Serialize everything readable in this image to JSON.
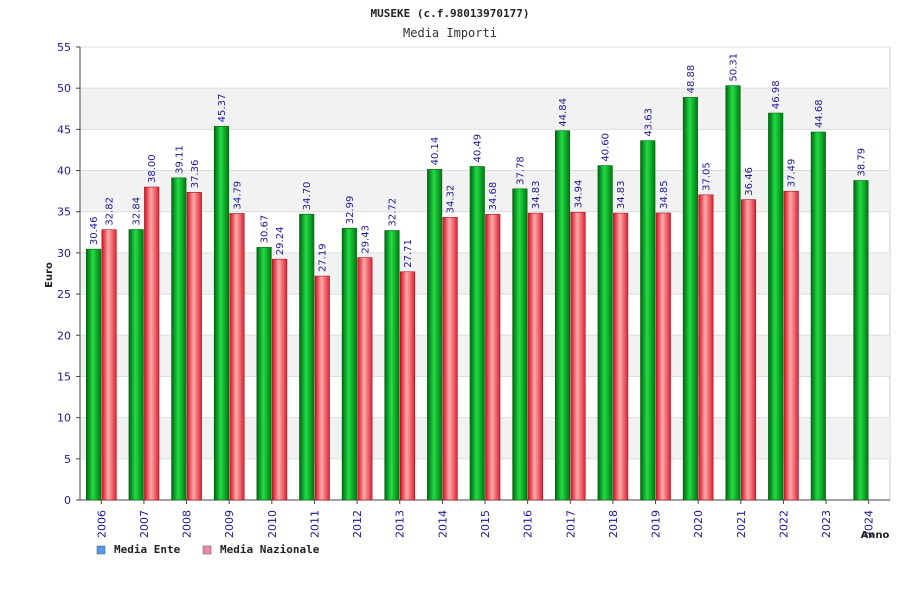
{
  "chart_data": {
    "type": "bar",
    "title": "MUSEKE (c.f.98013970177)",
    "subtitle": "Media Importi",
    "xlabel": "Anno",
    "ylabel": "Euro",
    "ylim": [
      0,
      55
    ],
    "yticks": [
      0,
      5,
      10,
      15,
      20,
      25,
      30,
      35,
      40,
      45,
      50,
      55
    ],
    "categories": [
      "2006",
      "2007",
      "2008",
      "2009",
      "2010",
      "2011",
      "2012",
      "2013",
      "2014",
      "2015",
      "2016",
      "2017",
      "2018",
      "2019",
      "2020",
      "2021",
      "2022",
      "2023",
      "2024"
    ],
    "series": [
      {
        "name": "Media Ente",
        "color": "#00aa22",
        "legend_color": "#5599ee",
        "values": [
          30.46,
          32.84,
          39.11,
          45.37,
          30.67,
          34.7,
          32.99,
          32.72,
          40.14,
          40.49,
          37.78,
          44.84,
          40.6,
          43.63,
          48.88,
          50.31,
          46.98,
          44.68,
          38.79
        ],
        "labels": [
          "30.46",
          "32.84",
          "39.11",
          "45.37",
          "30.67",
          "34.70",
          "32.99",
          "32.72",
          "40.14",
          "40.49",
          "37.78",
          "44.84",
          "40.60",
          "43.63",
          "48.88",
          "50.31",
          "46.98",
          "44.68",
          "38.79"
        ]
      },
      {
        "name": "Media Nazionale",
        "color": "#ee2233",
        "legend_color": "#ee88aa",
        "values": [
          32.82,
          38.0,
          37.36,
          34.79,
          29.24,
          27.19,
          29.43,
          27.71,
          34.32,
          34.68,
          34.83,
          34.94,
          34.83,
          34.85,
          37.05,
          36.46,
          37.49,
          null,
          null
        ],
        "labels": [
          "32.82",
          "38.00",
          "37.36",
          "34.79",
          "29.24",
          "27.19",
          "29.43",
          "27.71",
          "34.32",
          "34.68",
          "34.83",
          "34.94",
          "34.83",
          "34.85",
          "37.05",
          "36.46",
          "37.49",
          null,
          null
        ]
      }
    ],
    "grid": true,
    "legend": "bottom-left"
  }
}
